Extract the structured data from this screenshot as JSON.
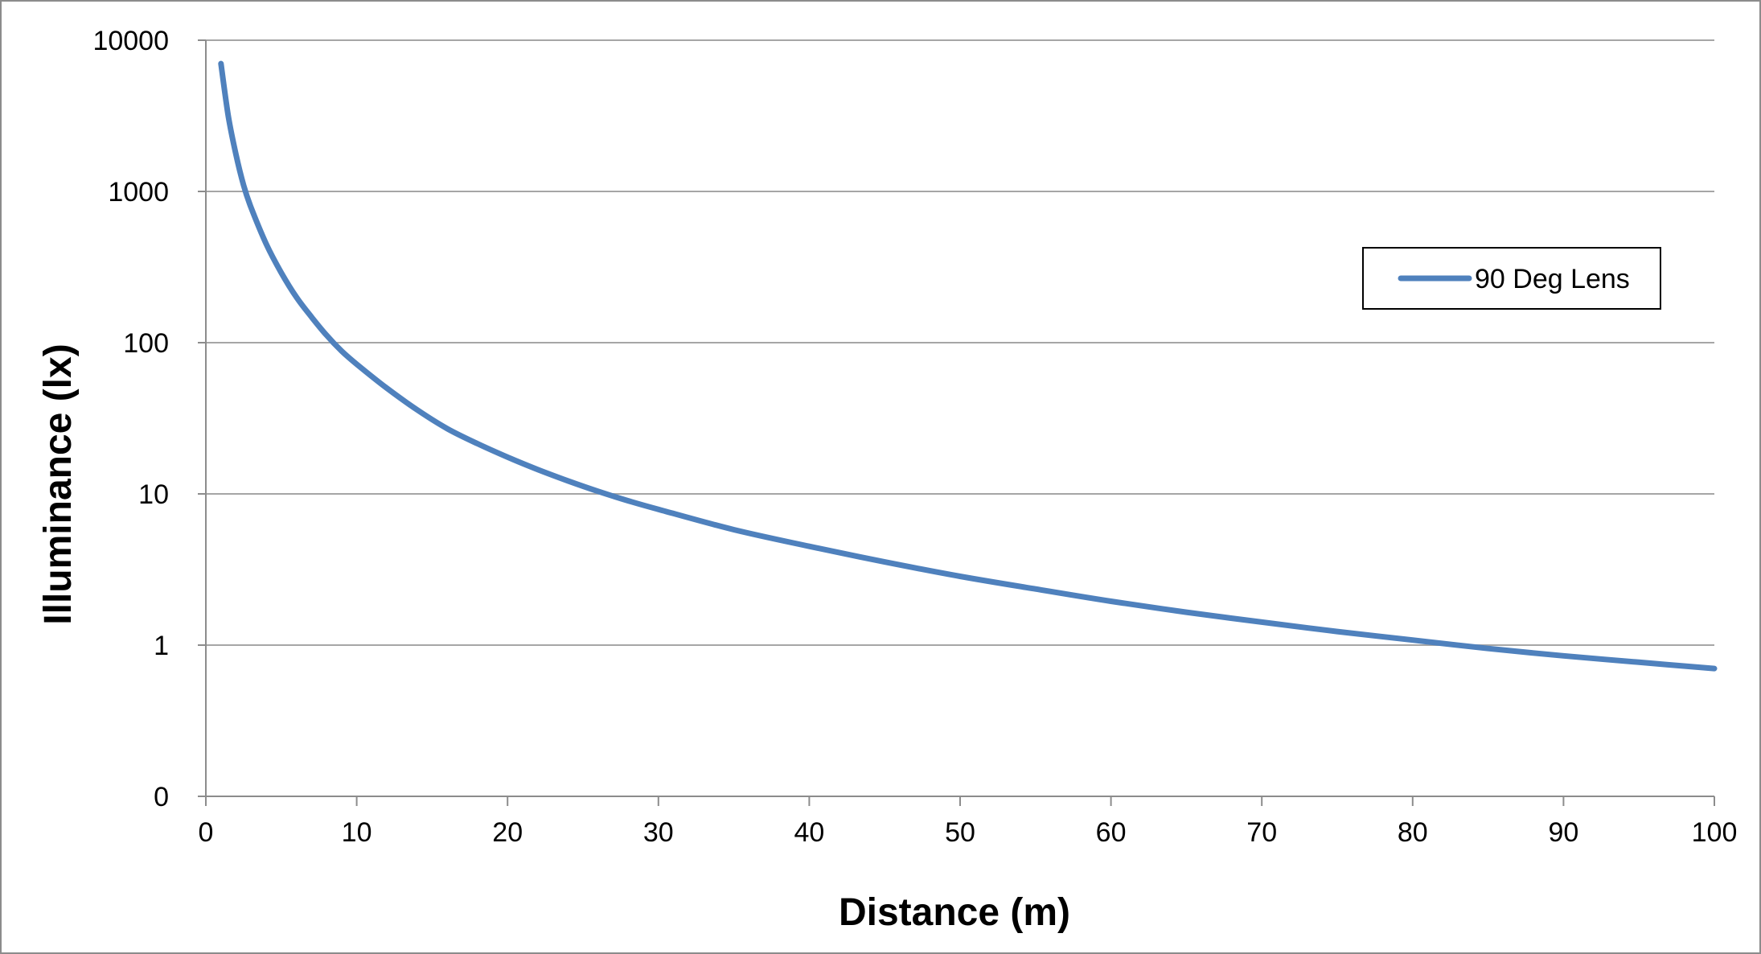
{
  "chart_data": {
    "type": "line",
    "title": "",
    "xlabel": "Distance (m)",
    "ylabel": "Illuminance (lx)",
    "x_scale": "linear",
    "y_scale": "log",
    "xlim": [
      0,
      100
    ],
    "ylim": [
      0.1,
      10000
    ],
    "x_ticks": [
      0,
      10,
      20,
      30,
      40,
      50,
      60,
      70,
      80,
      90,
      100
    ],
    "x_tick_labels": [
      "0",
      "10",
      "20",
      "30",
      "40",
      "50",
      "60",
      "70",
      "80",
      "90",
      "100"
    ],
    "y_ticks": [
      0.1,
      1,
      10,
      100,
      1000,
      10000
    ],
    "y_tick_labels": [
      "0",
      "1",
      "10",
      "100",
      "1000",
      "10000"
    ],
    "grid": "horizontal major gridlines",
    "legend": {
      "position": "top-right"
    },
    "series": [
      {
        "name": "90 Deg Lens",
        "color": "#4f81bd",
        "x": [
          1,
          1.5,
          2,
          2.5,
          3,
          4,
          5,
          6,
          7,
          8,
          9,
          10,
          12,
          14,
          16,
          18,
          20,
          22,
          24,
          26,
          28,
          30,
          35,
          40,
          45,
          50,
          55,
          60,
          65,
          70,
          75,
          80,
          85,
          90,
          95,
          100
        ],
        "y": [
          7000,
          3100,
          1750,
          1100,
          780,
          450,
          290,
          200,
          148,
          112,
          88,
          72,
          50,
          36,
          27,
          21.5,
          17.5,
          14.5,
          12.2,
          10.4,
          9.0,
          7.9,
          5.8,
          4.5,
          3.55,
          2.85,
          2.35,
          1.95,
          1.65,
          1.42,
          1.23,
          1.08,
          0.95,
          0.85,
          0.77,
          0.7
        ]
      }
    ]
  }
}
